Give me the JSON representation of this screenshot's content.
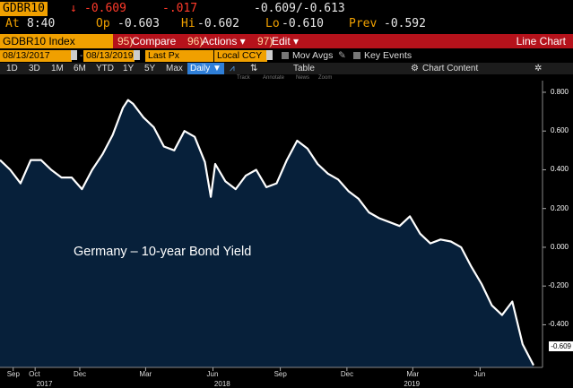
{
  "quote": {
    "ticker": "GDBR10",
    "change_arrow": "↓",
    "last": "-0.609",
    "net_change": "-.017",
    "bid_ask": "-0.609/-0.613",
    "time_label": "At",
    "time": "8:40",
    "open_label": "Op",
    "open": "-0.603",
    "high_label": "Hi",
    "high": "-0.602",
    "low_label": "Lo",
    "low": "-0.610",
    "prev_label": "Prev",
    "prev": "-0.592"
  },
  "toolbar": {
    "security": "GDBR10 Index",
    "compare_num": "95)",
    "compare": "Compare",
    "actions_num": "96)",
    "actions": "Actions ▾",
    "edit_num": "97)",
    "edit": "Edit ▾",
    "title": "Line Chart"
  },
  "controls": {
    "start_date": "08/13/2017",
    "end_date": "08/13/2019",
    "price_field": "Last Px",
    "currency": "Local CCY",
    "mov_avgs": "Mov Avgs",
    "key_events": "Key Events"
  },
  "periods": [
    "1D",
    "3D",
    "1M",
    "6M",
    "YTD",
    "1Y",
    "5Y",
    "Max"
  ],
  "frequency": "Daily ▼",
  "table_label": "Table",
  "chart_content_label": "Chart Content",
  "mini_tools": [
    "Track",
    "Annotate",
    "News",
    "Zoom"
  ],
  "annotation": "Germany – 10-year Bond Yield",
  "colors": {
    "accent": "#f0a000",
    "bar": "#b5121b",
    "down": "#ff3a2a",
    "plot_bg": "#07203a"
  },
  "chart_data": {
    "type": "area",
    "title": "",
    "xlabel": "",
    "ylabel": "",
    "ylim": [
      -0.62,
      0.86
    ],
    "y_ticks": [
      "0.800",
      "0.600",
      "0.400",
      "0.200",
      "0.000",
      "-0.200",
      "-0.400"
    ],
    "y_tick_values": [
      0.8,
      0.6,
      0.4,
      0.2,
      0.0,
      -0.2,
      -0.4
    ],
    "x_ticks": [
      "Sep",
      "Oct",
      "Dec",
      "Mar",
      "Jun",
      "Sep",
      "Dec",
      "Mar",
      "Jun"
    ],
    "x_tick_dates": [
      "2017-09-01",
      "2017-10-01",
      "2017-12-01",
      "2018-03-01",
      "2018-06-01",
      "2018-09-01",
      "2018-12-01",
      "2019-03-01",
      "2019-06-01"
    ],
    "years": [
      "2017",
      "2018",
      "2019"
    ],
    "year_dates": [
      "2017-10-15",
      "2018-06-15",
      "2019-03-01"
    ],
    "last_value_label": "-0.609",
    "x": [
      "2017-08-14",
      "2017-08-28",
      "2017-09-11",
      "2017-09-25",
      "2017-10-09",
      "2017-10-23",
      "2017-11-06",
      "2017-11-20",
      "2017-12-04",
      "2017-12-18",
      "2018-01-01",
      "2018-01-15",
      "2018-01-29",
      "2018-02-05",
      "2018-02-12",
      "2018-02-26",
      "2018-03-12",
      "2018-03-26",
      "2018-04-09",
      "2018-04-23",
      "2018-05-07",
      "2018-05-21",
      "2018-05-29",
      "2018-06-04",
      "2018-06-18",
      "2018-07-02",
      "2018-07-16",
      "2018-07-30",
      "2018-08-13",
      "2018-08-27",
      "2018-09-10",
      "2018-09-24",
      "2018-10-08",
      "2018-10-22",
      "2018-11-05",
      "2018-11-19",
      "2018-12-03",
      "2018-12-17",
      "2018-12-31",
      "2019-01-14",
      "2019-01-28",
      "2019-02-11",
      "2019-02-25",
      "2019-03-11",
      "2019-03-25",
      "2019-04-08",
      "2019-04-22",
      "2019-05-06",
      "2019-05-20",
      "2019-06-03",
      "2019-06-17",
      "2019-07-01",
      "2019-07-15",
      "2019-07-29",
      "2019-08-13"
    ],
    "values": [
      0.45,
      0.4,
      0.33,
      0.45,
      0.45,
      0.4,
      0.36,
      0.36,
      0.3,
      0.4,
      0.48,
      0.58,
      0.72,
      0.76,
      0.74,
      0.67,
      0.62,
      0.52,
      0.5,
      0.6,
      0.57,
      0.44,
      0.26,
      0.43,
      0.34,
      0.3,
      0.37,
      0.4,
      0.31,
      0.33,
      0.45,
      0.55,
      0.51,
      0.43,
      0.38,
      0.35,
      0.29,
      0.25,
      0.18,
      0.15,
      0.13,
      0.11,
      0.16,
      0.07,
      0.02,
      0.04,
      0.03,
      0.0,
      -0.1,
      -0.19,
      -0.3,
      -0.35,
      -0.28,
      -0.5,
      -0.609
    ]
  }
}
